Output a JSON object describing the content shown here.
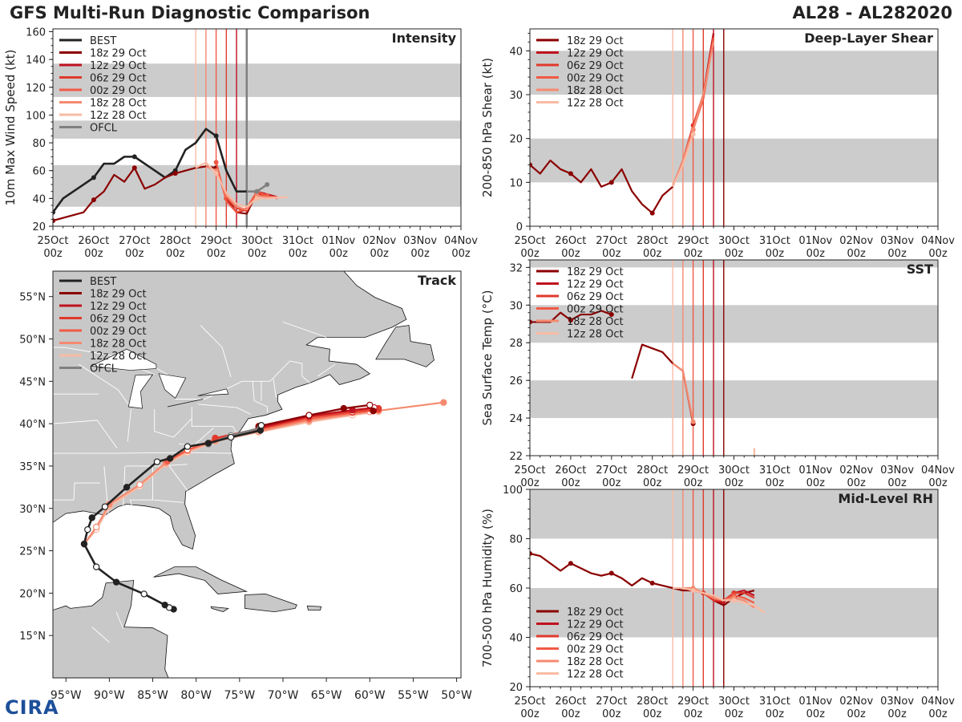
{
  "header": {
    "left_title": "GFS Multi-Run Diagnostic Comparison",
    "right_title": "AL28 - AL282020"
  },
  "logo": {
    "text": "CIRA"
  },
  "colors": {
    "BEST": "#222222",
    "OFCL": "#808080",
    "18z 29 Oct": "#8b0000",
    "12z 29 Oct": "#c0121f",
    "06z 29 Oct": "#e03a2c",
    "00z 29 Oct": "#f15a45",
    "18z 28 Oct": "#f58a70",
    "12z 28 Oct": "#f9bba4",
    "band": "#cccccc"
  },
  "time_axis": {
    "ticks": [
      "25Oct",
      "26Oct",
      "27Oct",
      "28Oct",
      "29Oct",
      "30Oct",
      "31Oct",
      "01Nov",
      "02Nov",
      "03Nov",
      "04Nov"
    ],
    "sublabel": "00z"
  },
  "chart_data": [
    {
      "id": "intensity",
      "type": "line",
      "title": "Intensity",
      "ylabel": "10m Max Wind Speed (kt)",
      "x_units": "days since 25Oct 00z",
      "xlim": [
        0,
        10
      ],
      "ylim": [
        20,
        162
      ],
      "yticks": [
        20,
        40,
        60,
        80,
        100,
        120,
        140,
        160
      ],
      "bands": [
        [
          34,
          64
        ],
        [
          83,
          96
        ],
        [
          113,
          137
        ]
      ],
      "vlines": [
        {
          "run": "12z 28 Oct",
          "x": 3.5
        },
        {
          "run": "18z 28 Oct",
          "x": 3.75
        },
        {
          "run": "00z 29 Oct",
          "x": 4.0
        },
        {
          "run": "06z 29 Oct",
          "x": 4.25
        },
        {
          "run": "12z 29 Oct",
          "x": 4.5
        },
        {
          "run": "18z 29 Oct",
          "x": 4.75
        },
        {
          "run": "OFCL",
          "x": 4.75
        }
      ],
      "legend": [
        "BEST",
        "18z 29 Oct",
        "12z 29 Oct",
        "06z 29 Oct",
        "00z 29 Oct",
        "18z 28 Oct",
        "12z 28 Oct",
        "OFCL"
      ],
      "series": [
        {
          "name": "BEST",
          "x": [
            0,
            0.25,
            0.5,
            0.75,
            1.0,
            1.25,
            1.5,
            1.75,
            2.0,
            2.25,
            2.5,
            2.75,
            3.0,
            3.25,
            3.5,
            3.75,
            4.0,
            4.25,
            4.5,
            4.75
          ],
          "y": [
            30,
            40,
            45,
            50,
            55,
            65,
            65,
            70,
            70,
            65,
            60,
            55,
            60,
            75,
            80,
            90,
            85,
            60,
            45,
            45
          ]
        },
        {
          "name": "18z 29 Oct",
          "x": [
            0,
            0.75,
            1.0,
            1.25,
            1.5,
            1.75,
            2.0,
            2.25,
            2.5,
            2.75,
            3.0,
            3.25,
            3.5,
            3.75,
            4.0,
            4.25,
            4.5,
            4.75,
            5.0,
            5.25,
            5.5
          ],
          "y": [
            24,
            30,
            39,
            45,
            57,
            52,
            62,
            47,
            50,
            55,
            58,
            60,
            62,
            63,
            62,
            40,
            30,
            29,
            44,
            43,
            40
          ]
        },
        {
          "name": "12z 29 Oct",
          "x": [
            4.5,
            4.75,
            5.0,
            5.25,
            5.5
          ],
          "y": [
            30,
            32,
            45,
            43,
            41
          ]
        },
        {
          "name": "06z 29 Oct",
          "x": [
            4.25,
            4.5,
            4.75,
            5.0,
            5.25,
            5.5
          ],
          "y": [
            40,
            33,
            31,
            43,
            42,
            40
          ]
        },
        {
          "name": "00z 29 Oct",
          "x": [
            4.0,
            4.25,
            4.5,
            4.75,
            5.0,
            5.25
          ],
          "y": [
            66,
            38,
            30,
            33,
            45,
            42
          ]
        },
        {
          "name": "18z 28 Oct",
          "x": [
            3.75,
            4.0,
            4.25,
            4.5,
            4.75,
            5.0,
            5.25,
            5.5
          ],
          "y": [
            63,
            60,
            42,
            34,
            32,
            42,
            41,
            41
          ]
        },
        {
          "name": "12z 28 Oct",
          "x": [
            3.5,
            3.75,
            4.0,
            4.25,
            4.5,
            4.75,
            5.0,
            5.25,
            5.75
          ],
          "y": [
            62,
            66,
            58,
            44,
            36,
            34,
            40,
            40,
            41
          ]
        },
        {
          "name": "OFCL",
          "x": [
            4.75,
            5.0,
            5.25
          ],
          "y": [
            45,
            45,
            50
          ]
        }
      ]
    },
    {
      "id": "shear",
      "type": "line",
      "title": "Deep-Layer Shear",
      "ylabel": "200-850 hPa Shear (kt)",
      "x_units": "days since 25Oct 00z",
      "xlim": [
        0,
        10
      ],
      "ylim": [
        0,
        45
      ],
      "yticks": [
        0,
        10,
        20,
        30,
        40
      ],
      "bands": [
        [
          10,
          20
        ],
        [
          30,
          40
        ]
      ],
      "vlines": [
        {
          "run": "12z 28 Oct",
          "x": 3.5
        },
        {
          "run": "18z 28 Oct",
          "x": 3.75
        },
        {
          "run": "00z 29 Oct",
          "x": 4.0
        },
        {
          "run": "06z 29 Oct",
          "x": 4.25
        },
        {
          "run": "12z 29 Oct",
          "x": 4.5
        },
        {
          "run": "18z 29 Oct",
          "x": 4.75
        }
      ],
      "legend": [
        "18z 29 Oct",
        "12z 29 Oct",
        "06z 29 Oct",
        "00z 29 Oct",
        "18z 28 Oct",
        "12z 28 Oct"
      ],
      "series": [
        {
          "name": "18z 29 Oct",
          "x": [
            0,
            0.25,
            0.5,
            0.75,
            1.0,
            1.25,
            1.5,
            1.75,
            2.0,
            2.25,
            2.5,
            2.75,
            3.0,
            3.25,
            3.5,
            3.75,
            4.0,
            4.25,
            4.5
          ],
          "y": [
            14,
            12,
            15,
            13,
            12,
            10,
            13,
            9,
            10,
            13,
            8,
            5,
            3,
            7,
            9,
            15,
            22,
            30,
            44
          ]
        },
        {
          "name": "12z 29 Oct",
          "x": [
            4.0,
            4.25,
            4.5
          ],
          "y": [
            22,
            30,
            44
          ]
        },
        {
          "name": "06z 29 Oct",
          "x": [
            3.75,
            4.0,
            4.25,
            4.5
          ],
          "y": [
            15,
            23,
            30,
            43
          ]
        },
        {
          "name": "00z 29 Oct",
          "x": [
            3.75,
            4.0,
            4.25,
            4.5
          ],
          "y": [
            15,
            22,
            29,
            43
          ]
        },
        {
          "name": "18z 28 Oct",
          "x": [
            3.5,
            3.75,
            4.0,
            4.25,
            4.5
          ],
          "y": [
            9,
            15,
            22,
            30,
            42
          ]
        },
        {
          "name": "12z 28 Oct",
          "x": [
            3.5,
            3.75,
            4.0
          ],
          "y": [
            9,
            14,
            21
          ]
        }
      ]
    },
    {
      "id": "sst",
      "type": "line",
      "title": "SST",
      "ylabel": "Sea Surface Temp (°C)",
      "x_units": "days since 25Oct 00z",
      "xlim": [
        0,
        10
      ],
      "ylim": [
        22,
        32.4
      ],
      "yticks": [
        22,
        24,
        26,
        28,
        30,
        32
      ],
      "bands": [
        [
          24,
          26
        ],
        [
          28,
          30
        ],
        [
          32,
          32.4
        ]
      ],
      "vlines": [
        {
          "run": "12z 28 Oct",
          "x": 3.5
        },
        {
          "run": "18z 28 Oct",
          "x": 3.75
        },
        {
          "run": "00z 29 Oct",
          "x": 4.0
        },
        {
          "run": "06z 29 Oct",
          "x": 4.25
        },
        {
          "run": "12z 29 Oct",
          "x": 4.5
        },
        {
          "run": "18z 29 Oct",
          "x": 4.75
        }
      ],
      "legend": [
        "18z 29 Oct",
        "12z 29 Oct",
        "06z 29 Oct",
        "00z 29 Oct",
        "18z 28 Oct",
        "12z 28 Oct"
      ],
      "series": [
        {
          "name": "18z 29 Oct",
          "x": [
            0,
            0.5,
            0.75,
            1.0,
            1.25,
            1.5,
            1.75,
            2.0
          ],
          "y": [
            29.1,
            29.1,
            29.6,
            29.2,
            29.5,
            29.5,
            29.7,
            29.5
          ]
        },
        {
          "name": "18z 29 Oct",
          "x": [
            2.5,
            2.75,
            3.25,
            3.5,
            3.75,
            4.0
          ],
          "y": [
            26.1,
            27.9,
            27.5,
            26.9,
            26.5,
            23.7
          ]
        },
        {
          "name": "18z 28 Oct",
          "x": [
            3.5,
            3.75,
            4.0
          ],
          "y": [
            26.9,
            26.5,
            23.8
          ]
        },
        {
          "name": "12z 28 Oct",
          "x": [
            5.5,
            5.5
          ],
          "y": [
            22,
            22.4
          ]
        }
      ]
    },
    {
      "id": "rh",
      "type": "line",
      "title": "Mid-Level RH",
      "ylabel": "700-500 hPa Humidity (%)",
      "x_units": "days since 25Oct 00z",
      "xlim": [
        0,
        10
      ],
      "ylim": [
        20,
        100
      ],
      "yticks": [
        20,
        40,
        60,
        80,
        100
      ],
      "bands": [
        [
          40,
          60
        ],
        [
          80,
          100
        ]
      ],
      "vlines": [
        {
          "run": "12z 28 Oct",
          "x": 3.5
        },
        {
          "run": "18z 28 Oct",
          "x": 3.75
        },
        {
          "run": "00z 29 Oct",
          "x": 4.0
        },
        {
          "run": "06z 29 Oct",
          "x": 4.25
        },
        {
          "run": "12z 29 Oct",
          "x": 4.5
        },
        {
          "run": "18z 29 Oct",
          "x": 4.75
        }
      ],
      "legend": [
        "18z 29 Oct",
        "12z 29 Oct",
        "06z 29 Oct",
        "00z 29 Oct",
        "18z 28 Oct",
        "12z 28 Oct"
      ],
      "series": [
        {
          "name": "18z 29 Oct",
          "x": [
            0,
            0.25,
            0.5,
            0.75,
            1.0,
            1.25,
            1.5,
            1.75,
            2.0,
            2.25,
            2.5,
            2.75,
            3.0,
            3.25,
            3.5,
            3.75,
            4.0,
            4.25,
            4.5,
            4.75,
            5.0,
            5.25,
            5.5
          ],
          "y": [
            74,
            73,
            70,
            67,
            70,
            68,
            66,
            65,
            66,
            64,
            61,
            64,
            62,
            61,
            60,
            59,
            59,
            58,
            55,
            53,
            56,
            58,
            59
          ]
        },
        {
          "name": "12z 29 Oct",
          "x": [
            4.5,
            4.75,
            5.0,
            5.25,
            5.5
          ],
          "y": [
            55,
            54,
            58,
            59,
            57
          ]
        },
        {
          "name": "06z 29 Oct",
          "x": [
            4.25,
            4.5,
            4.75,
            5.0,
            5.25,
            5.5
          ],
          "y": [
            58,
            55,
            55,
            58,
            58,
            56
          ]
        },
        {
          "name": "00z 29 Oct",
          "x": [
            4.0,
            4.25,
            4.5,
            4.75,
            5.0,
            5.25,
            5.5
          ],
          "y": [
            59,
            58,
            56,
            55,
            57,
            56,
            54
          ]
        },
        {
          "name": "18z 28 Oct",
          "x": [
            3.75,
            4.0,
            4.25,
            4.5,
            4.75,
            5.0,
            5.25,
            5.5
          ],
          "y": [
            60,
            60,
            58,
            56,
            55,
            56,
            55,
            52
          ]
        },
        {
          "name": "12z 28 Oct",
          "x": [
            3.5,
            3.75,
            4.0,
            4.25,
            4.5,
            4.75,
            5.0,
            5.25,
            5.5,
            5.75
          ],
          "y": [
            60,
            60,
            59,
            58,
            57,
            55,
            55,
            54,
            53,
            50
          ]
        }
      ]
    },
    {
      "id": "track",
      "type": "scatter",
      "title": "Track",
      "x_units": "longitude (deg, negative = W)",
      "y_units": "latitude (deg N)",
      "xlim": [
        -96.5,
        -49.5
      ],
      "ylim": [
        10,
        58
      ],
      "xticks": [
        -95,
        -90,
        -85,
        -80,
        -75,
        -70,
        -65,
        -60,
        -55,
        -50
      ],
      "xtick_labels": [
        "95°W",
        "90°W",
        "85°W",
        "80°W",
        "75°W",
        "70°W",
        "65°W",
        "60°W",
        "55°W",
        "50°W"
      ],
      "yticks": [
        15,
        20,
        25,
        30,
        35,
        40,
        45,
        50,
        55
      ],
      "ytick_labels": [
        "15°N",
        "20°N",
        "25°N",
        "30°N",
        "35°N",
        "40°N",
        "45°N",
        "50°N",
        "55°N"
      ],
      "legend": [
        "BEST",
        "18z 29 Oct",
        "12z 29 Oct",
        "06z 29 Oct",
        "00z 29 Oct",
        "18z 28 Oct",
        "12z 28 Oct",
        "OFCL"
      ],
      "series": [
        {
          "name": "BEST",
          "lon": [
            -82.6,
            -83.1,
            -83.6,
            -86,
            -89.2,
            -91.5,
            -92.9,
            -92.5,
            -92,
            -90.5,
            -88,
            -84.5,
            -83,
            -81,
            -78.6,
            -76,
            -72.6,
            -72.5
          ],
          "lat": [
            18.1,
            18.3,
            18.6,
            19.9,
            21.3,
            23.1,
            25.8,
            27.5,
            28.9,
            30.2,
            32.5,
            35.5,
            35.9,
            37.3,
            37.7,
            38.4,
            39.2,
            39.8
          ]
        },
        {
          "name": "18z 29 Oct",
          "lon": [
            -72.8,
            -67,
            -63,
            -60,
            -59.6
          ],
          "lat": [
            39.7,
            41.0,
            41.8,
            42.2,
            41.5
          ]
        },
        {
          "name": "12z 29 Oct",
          "lon": [
            -72.8,
            -67,
            -62,
            -59.5
          ],
          "lat": [
            39.5,
            40.9,
            41.6,
            41.9
          ]
        },
        {
          "name": "06z 29 Oct",
          "lon": [
            -77.8,
            -72.8,
            -67,
            -62,
            -59
          ],
          "lat": [
            38.3,
            39.4,
            40.8,
            41.4,
            41.8
          ]
        },
        {
          "name": "00z 29 Oct",
          "lon": [
            -83.3,
            -81,
            -77.8,
            -72.8,
            -67,
            -62,
            -59
          ],
          "lat": [
            35.6,
            36.9,
            38.2,
            39.3,
            40.6,
            41.3,
            41.6
          ]
        },
        {
          "name": "18z 28 Oct",
          "lon": [
            -92.9,
            -91.5,
            -90,
            -86.5,
            -83.5,
            -81,
            -77.8,
            -72.8,
            -67,
            -60,
            -51.5
          ],
          "lat": [
            25.8,
            27.8,
            30.5,
            32.8,
            35.4,
            36.8,
            38.0,
            39.1,
            40.4,
            41.4,
            42.5
          ]
        },
        {
          "name": "12z 28 Oct",
          "lon": [
            -92.9,
            -91.5,
            -90,
            -86.5,
            -83.5,
            -81,
            -77.8,
            -72.8,
            -67,
            -62,
            -59
          ],
          "lat": [
            25.8,
            27.5,
            30.2,
            32.6,
            35.2,
            36.6,
            37.9,
            39.0,
            40.2,
            41.0,
            41.4
          ]
        },
        {
          "name": "OFCL",
          "lon": [
            -78.6,
            -76,
            -72.6
          ],
          "lat": [
            37.6,
            38.6,
            39.5
          ]
        }
      ]
    }
  ]
}
